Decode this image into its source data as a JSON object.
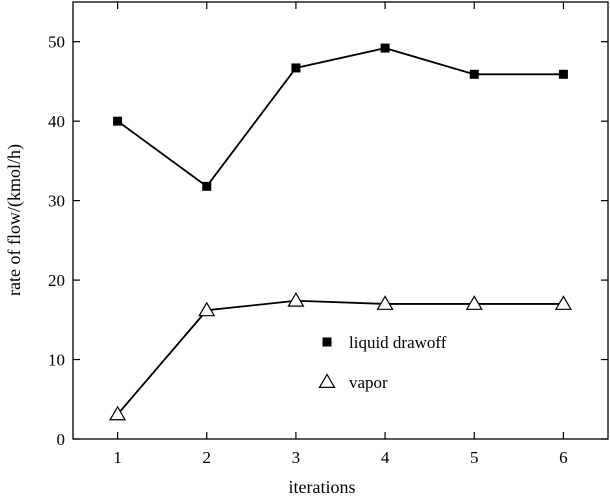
{
  "chart_data": {
    "type": "line",
    "xlabel": "iterations",
    "ylabel": "rate of flow/(kmol/h)",
    "x": [
      1,
      2,
      3,
      4,
      5,
      6
    ],
    "xlim": [
      0.5,
      6.5
    ],
    "ylim": [
      0,
      55
    ],
    "xticks": [
      1,
      2,
      3,
      4,
      5,
      6
    ],
    "yticks": [
      0,
      10,
      20,
      30,
      40,
      50
    ],
    "grid": false,
    "legend_position": "center-right",
    "series": [
      {
        "name": "liquid drawoff",
        "marker": "filled-square",
        "values": [
          40,
          31.8,
          46.7,
          49.2,
          45.9,
          45.9
        ]
      },
      {
        "name": "vapor",
        "marker": "open-triangle",
        "values": [
          3.1,
          16.2,
          17.4,
          17.0,
          17.0,
          17.0
        ]
      }
    ]
  }
}
